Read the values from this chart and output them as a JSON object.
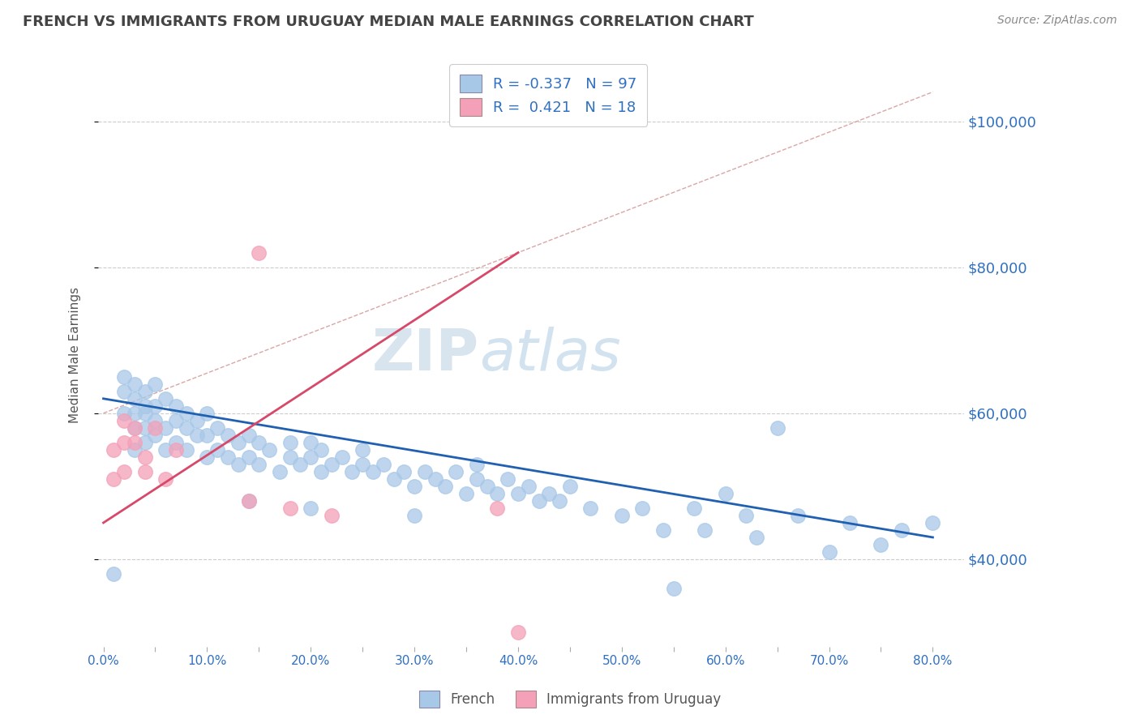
{
  "title": "FRENCH VS IMMIGRANTS FROM URUGUAY MEDIAN MALE EARNINGS CORRELATION CHART",
  "source_text": "Source: ZipAtlas.com",
  "ylabel": "Median Male Earnings",
  "watermark_zip": "ZIP",
  "watermark_atlas": "atlas",
  "xlim": [
    -0.005,
    0.83
  ],
  "ylim": [
    28000,
    108000
  ],
  "xtick_labels": [
    "0.0%",
    "",
    "10.0%",
    "",
    "20.0%",
    "",
    "30.0%",
    "",
    "40.0%",
    "",
    "50.0%",
    "",
    "60.0%",
    "",
    "70.0%",
    "",
    "80.0%"
  ],
  "xtick_vals": [
    0.0,
    0.05,
    0.1,
    0.15,
    0.2,
    0.25,
    0.3,
    0.35,
    0.4,
    0.45,
    0.5,
    0.55,
    0.6,
    0.65,
    0.7,
    0.75,
    0.8
  ],
  "ytick_vals": [
    40000,
    60000,
    80000,
    100000
  ],
  "ytick_labels": [
    "$40,000",
    "$60,000",
    "$80,000",
    "$100,000"
  ],
  "french_color": "#a8c8e8",
  "uruguay_color": "#f4a0b8",
  "french_line_color": "#2060b0",
  "uruguay_line_color": "#d84868",
  "ref_line_color": "#d09090",
  "legend_french_R": "-0.337",
  "legend_french_N": "97",
  "legend_uruguay_R": "0.421",
  "legend_uruguay_N": "18",
  "grid_color": "#cccccc",
  "background_color": "#ffffff",
  "title_color": "#444444",
  "axis_label_color": "#3070c0",
  "french_x": [
    0.01,
    0.02,
    0.02,
    0.02,
    0.03,
    0.03,
    0.03,
    0.03,
    0.03,
    0.04,
    0.04,
    0.04,
    0.04,
    0.04,
    0.05,
    0.05,
    0.05,
    0.05,
    0.06,
    0.06,
    0.06,
    0.07,
    0.07,
    0.07,
    0.08,
    0.08,
    0.08,
    0.09,
    0.09,
    0.1,
    0.1,
    0.1,
    0.11,
    0.11,
    0.12,
    0.12,
    0.13,
    0.13,
    0.14,
    0.14,
    0.14,
    0.15,
    0.15,
    0.16,
    0.17,
    0.18,
    0.18,
    0.19,
    0.2,
    0.2,
    0.2,
    0.21,
    0.21,
    0.22,
    0.23,
    0.24,
    0.25,
    0.25,
    0.26,
    0.27,
    0.28,
    0.29,
    0.3,
    0.3,
    0.31,
    0.32,
    0.33,
    0.34,
    0.35,
    0.36,
    0.36,
    0.37,
    0.38,
    0.39,
    0.4,
    0.41,
    0.42,
    0.43,
    0.44,
    0.45,
    0.47,
    0.5,
    0.52,
    0.54,
    0.55,
    0.57,
    0.58,
    0.6,
    0.62,
    0.63,
    0.65,
    0.67,
    0.7,
    0.72,
    0.75,
    0.77,
    0.8
  ],
  "french_y": [
    38000,
    60000,
    63000,
    65000,
    55000,
    58000,
    60000,
    62000,
    64000,
    56000,
    58000,
    60000,
    61000,
    63000,
    57000,
    59000,
    61000,
    64000,
    55000,
    58000,
    62000,
    56000,
    59000,
    61000,
    55000,
    58000,
    60000,
    57000,
    59000,
    54000,
    57000,
    60000,
    55000,
    58000,
    54000,
    57000,
    53000,
    56000,
    54000,
    57000,
    48000,
    53000,
    56000,
    55000,
    52000,
    54000,
    56000,
    53000,
    54000,
    56000,
    47000,
    52000,
    55000,
    53000,
    54000,
    52000,
    53000,
    55000,
    52000,
    53000,
    51000,
    52000,
    50000,
    46000,
    52000,
    51000,
    50000,
    52000,
    49000,
    51000,
    53000,
    50000,
    49000,
    51000,
    49000,
    50000,
    48000,
    49000,
    48000,
    50000,
    47000,
    46000,
    47000,
    44000,
    36000,
    47000,
    44000,
    49000,
    46000,
    43000,
    58000,
    46000,
    41000,
    45000,
    42000,
    44000,
    45000
  ],
  "uruguay_x": [
    0.01,
    0.01,
    0.02,
    0.02,
    0.02,
    0.03,
    0.03,
    0.04,
    0.04,
    0.05,
    0.06,
    0.07,
    0.14,
    0.15,
    0.18,
    0.22,
    0.38,
    0.4
  ],
  "uruguay_y": [
    55000,
    51000,
    59000,
    56000,
    52000,
    58000,
    56000,
    54000,
    52000,
    58000,
    51000,
    55000,
    48000,
    82000,
    47000,
    46000,
    47000,
    30000
  ],
  "french_trendline_x": [
    0.0,
    0.8
  ],
  "french_trendline_y": [
    62000,
    43000
  ],
  "uruguay_trendline_x": [
    0.0,
    0.4
  ],
  "uruguay_trendline_y": [
    45000,
    82000
  ],
  "ref_line_x": [
    0.0,
    0.8
  ],
  "ref_line_y": [
    60000,
    104000
  ]
}
